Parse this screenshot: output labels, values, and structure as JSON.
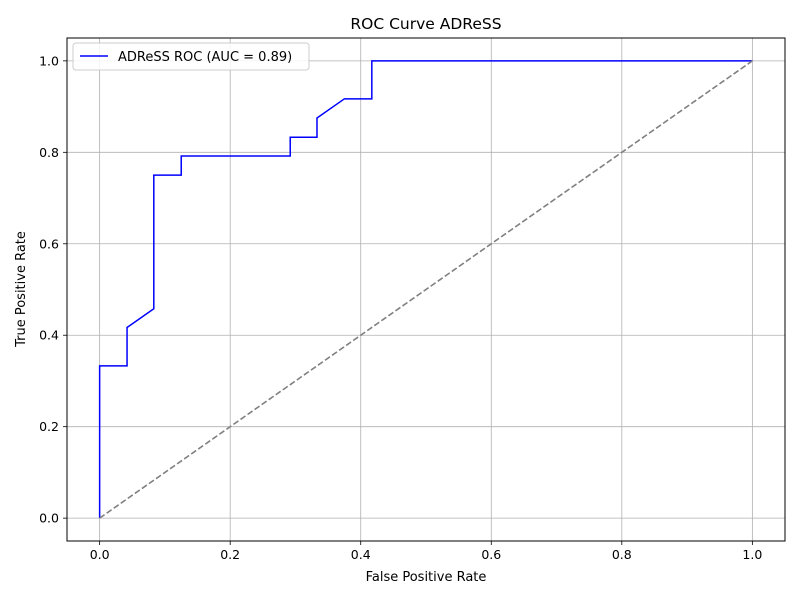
{
  "chart_data": {
    "type": "line",
    "title": "ROC Curve ADReSS",
    "xlabel": "False Positive Rate",
    "ylabel": "True Positive Rate",
    "xlim": [
      -0.05,
      1.05
    ],
    "ylim": [
      -0.05,
      1.05
    ],
    "xticks": [
      "0.0",
      "0.2",
      "0.4",
      "0.6",
      "0.8",
      "1.0"
    ],
    "yticks": [
      "0.0",
      "0.2",
      "0.4",
      "0.6",
      "0.8",
      "1.0"
    ],
    "grid": true,
    "legend_position": "top-left",
    "series": [
      {
        "name": "ADReSS ROC (AUC = 0.89)",
        "color": "#0000ff",
        "line_style": "solid",
        "x": [
          0.0,
          0.0,
          0.042,
          0.042,
          0.083,
          0.083,
          0.125,
          0.125,
          0.292,
          0.292,
          0.333,
          0.333,
          0.375,
          0.417,
          0.417,
          1.0
        ],
        "y": [
          0.0,
          0.333,
          0.333,
          0.417,
          0.458,
          0.75,
          0.75,
          0.792,
          0.792,
          0.833,
          0.833,
          0.875,
          0.917,
          0.917,
          1.0,
          1.0
        ]
      },
      {
        "color": "#808080",
        "line_style": "dashed",
        "x": [
          0.0,
          1.0
        ],
        "y": [
          0.0,
          1.0
        ]
      }
    ]
  }
}
